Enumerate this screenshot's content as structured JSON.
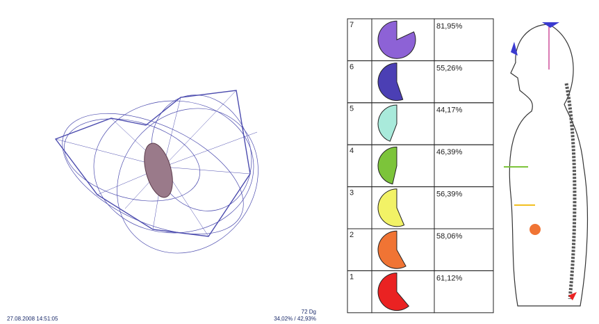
{
  "status": {
    "timestamp": "27.08.2008 14:51:05",
    "angle": "72 Dg",
    "ratio": "34,02% / 42,93%"
  },
  "table": {
    "rows": [
      {
        "level": "7",
        "value": 81.95,
        "label": "81,95%",
        "color": "#8d62d6"
      },
      {
        "level": "6",
        "value": 55.26,
        "label": "55,26%",
        "color": "#4b3fb4"
      },
      {
        "level": "5",
        "value": 44.17,
        "label": "44,17%",
        "color": "#a9eadb"
      },
      {
        "level": "4",
        "value": 46.39,
        "label": "46,39%",
        "color": "#7cc43a"
      },
      {
        "level": "3",
        "value": 56.39,
        "label": "56,39%",
        "color": "#f2f266"
      },
      {
        "level": "2",
        "value": 58.06,
        "label": "58,06%",
        "color": "#f07434"
      },
      {
        "level": "1",
        "value": 61.12,
        "label": "61,12%",
        "color": "#ea2222"
      }
    ]
  }
}
